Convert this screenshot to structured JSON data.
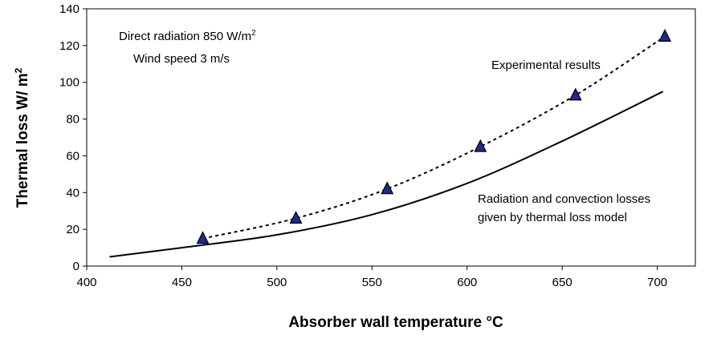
{
  "chart_data": {
    "type": "line",
    "xlabel": "Absorber wall temperature °C",
    "ylabel": "Thermal loss  W/ m",
    "ylabel_sup": "2",
    "xlim": [
      400,
      720
    ],
    "ylim": [
      0,
      140
    ],
    "xticks": [
      400,
      450,
      500,
      550,
      600,
      650,
      700
    ],
    "yticks": [
      0,
      20,
      40,
      60,
      80,
      100,
      120,
      140
    ],
    "grid": false,
    "legend": "none",
    "series": [
      {
        "style": "dashed-with-triangle-markers",
        "color": "#000000",
        "marker_color": "#1f2a8a",
        "x": [
          461,
          510,
          558,
          607,
          657,
          704
        ],
        "y": [
          15,
          26,
          42,
          65,
          93,
          125
        ]
      },
      {
        "style": "solid",
        "color": "#000000",
        "x": [
          412,
          450,
          500,
          550,
          600,
          650,
          703
        ],
        "y": [
          5,
          10,
          17,
          28,
          45,
          68,
          95
        ]
      }
    ],
    "annotations": {
      "radiation_prefix": "Direct radiation 850 W/m",
      "radiation_sup": "2",
      "wind": "Wind speed 3 m/s",
      "experimental": "Experimental results",
      "model_line1": "Radiation and convection losses",
      "model_line2": "given by thermal loss model"
    }
  }
}
